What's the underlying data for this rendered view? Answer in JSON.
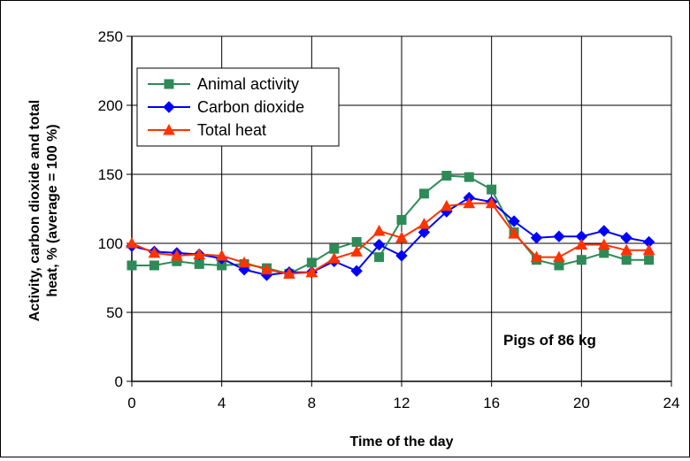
{
  "chart_data": {
    "type": "line",
    "title": "",
    "xlabel": "Time of the day",
    "ylabel_lines": [
      "Activity, carbon dioxide and total",
      "heat, % (average = 100 %)"
    ],
    "xlim": [
      0,
      24
    ],
    "ylim": [
      0,
      250
    ],
    "xticks": [
      0,
      4,
      8,
      12,
      16,
      20,
      24
    ],
    "yticks": [
      0,
      50,
      100,
      150,
      200,
      250
    ],
    "grid": true,
    "legend_position": "top-left",
    "annotation": "Pigs of 86 kg",
    "x": [
      0,
      1,
      2,
      3,
      4,
      5,
      6,
      7,
      8,
      9,
      10,
      11,
      12,
      13,
      14,
      15,
      16,
      17,
      18,
      19,
      20,
      21,
      22,
      23
    ],
    "series": [
      {
        "name": "Animal activity",
        "color": "#2e8b57",
        "marker": "square",
        "values": [
          84,
          84,
          87,
          85,
          84,
          85,
          82,
          78,
          86,
          96,
          101,
          90,
          117,
          136,
          149,
          148,
          139,
          108,
          88,
          84,
          88,
          93,
          88,
          88
        ]
      },
      {
        "name": "Carbon dioxide",
        "color": "#0000ff",
        "marker": "diamond",
        "values": [
          98,
          94,
          93,
          92,
          89,
          81,
          77,
          79,
          79,
          87,
          80,
          99,
          91,
          108,
          123,
          133,
          130,
          116,
          104,
          105,
          105,
          109,
          104,
          101
        ]
      },
      {
        "name": "Total heat",
        "color": "#ff3300",
        "marker": "triangle",
        "values": [
          100,
          93,
          91,
          92,
          91,
          86,
          81,
          78,
          79,
          89,
          94,
          109,
          104,
          114,
          127,
          129,
          129,
          107,
          90,
          90,
          99,
          99,
          95,
          95
        ]
      }
    ]
  }
}
